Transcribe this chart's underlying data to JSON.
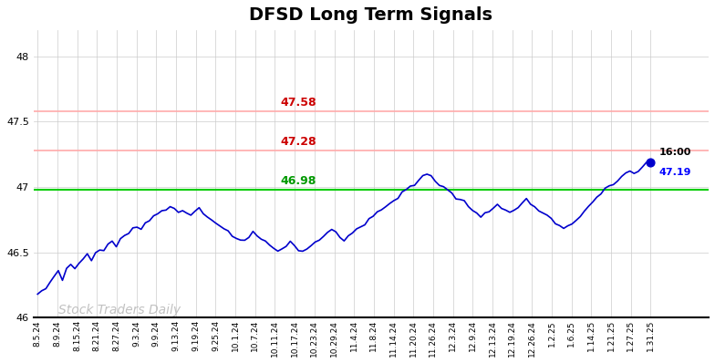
{
  "title": "DFSD Long Term Signals",
  "title_fontsize": 14,
  "title_fontweight": "bold",
  "ylim": [
    46.0,
    48.2
  ],
  "yticks": [
    46.0,
    46.5,
    47.0,
    47.5,
    48.0
  ],
  "line_color": "#0000cc",
  "line_width": 1.2,
  "hline_green": 46.98,
  "hline_green_label": "46.98",
  "hline_red1": 47.28,
  "hline_red1_label": "47.28",
  "hline_red2": 47.58,
  "hline_red2_label": "47.58",
  "hline_green_color": "#00cc00",
  "hline_red_color": "#ffaaaa",
  "hline_red_label_color": "#cc0000",
  "hline_green_label_color": "#009900",
  "watermark": "Stock Traders Daily",
  "watermark_color": "#bbbbbb",
  "watermark_fontsize": 10,
  "end_label_time": "16:00",
  "end_label_price": "47.19",
  "end_price_color": "#0000ff",
  "dot_color": "#0000cc",
  "dot_size": 40,
  "background_color": "#ffffff",
  "grid_color": "#cccccc",
  "xtick_labels": [
    "8.5.24",
    "8.9.24",
    "8.15.24",
    "8.21.24",
    "8.27.24",
    "9.3.24",
    "9.9.24",
    "9.13.24",
    "9.19.24",
    "9.25.24",
    "10.1.24",
    "10.7.24",
    "10.11.24",
    "10.17.24",
    "10.23.24",
    "10.29.24",
    "11.4.24",
    "11.8.24",
    "11.14.24",
    "11.20.24",
    "11.26.24",
    "12.3.24",
    "12.9.24",
    "12.13.24",
    "12.19.24",
    "12.26.24",
    "1.2.25",
    "1.6.25",
    "1.14.25",
    "1.21.25",
    "1.27.25",
    "1.31.25"
  ],
  "prices": [
    46.18,
    46.2,
    46.22,
    46.28,
    46.32,
    46.35,
    46.3,
    46.38,
    46.4,
    46.38,
    46.42,
    46.45,
    46.48,
    46.44,
    46.5,
    46.52,
    46.5,
    46.55,
    46.58,
    46.54,
    46.6,
    46.62,
    46.65,
    46.68,
    46.7,
    46.68,
    46.72,
    46.75,
    46.78,
    46.8,
    46.82,
    46.84,
    46.86,
    46.84,
    46.8,
    46.82,
    46.8,
    46.78,
    46.82,
    46.84,
    46.8,
    46.78,
    46.75,
    46.72,
    46.7,
    46.68,
    46.65,
    46.62,
    46.6,
    46.58,
    46.6,
    46.62,
    46.65,
    46.63,
    46.6,
    46.58,
    46.55,
    46.52,
    46.5,
    46.52,
    46.55,
    46.58,
    46.55,
    46.52,
    46.5,
    46.52,
    46.55,
    46.58,
    46.6,
    46.62,
    46.65,
    46.68,
    46.65,
    46.62,
    46.6,
    46.62,
    46.65,
    46.68,
    46.7,
    46.72,
    46.75,
    46.78,
    46.8,
    46.82,
    46.85,
    46.88,
    46.9,
    46.92,
    46.95,
    46.98,
    47.0,
    47.02,
    47.05,
    47.08,
    47.1,
    47.08,
    47.05,
    47.02,
    47.0,
    46.98,
    46.95,
    46.92,
    46.9,
    46.88,
    46.85,
    46.82,
    46.8,
    46.78,
    46.8,
    46.82,
    46.84,
    46.86,
    46.84,
    46.82,
    46.8,
    46.82,
    46.85,
    46.88,
    46.9,
    46.88,
    46.85,
    46.82,
    46.8,
    46.78,
    46.75,
    46.72,
    46.7,
    46.68,
    46.7,
    46.72,
    46.75,
    46.78,
    46.82,
    46.85,
    46.88,
    46.92,
    46.95,
    46.98,
    47.0,
    47.02,
    47.05,
    47.08,
    47.1,
    47.12,
    47.1,
    47.12,
    47.15,
    47.18,
    47.19
  ]
}
